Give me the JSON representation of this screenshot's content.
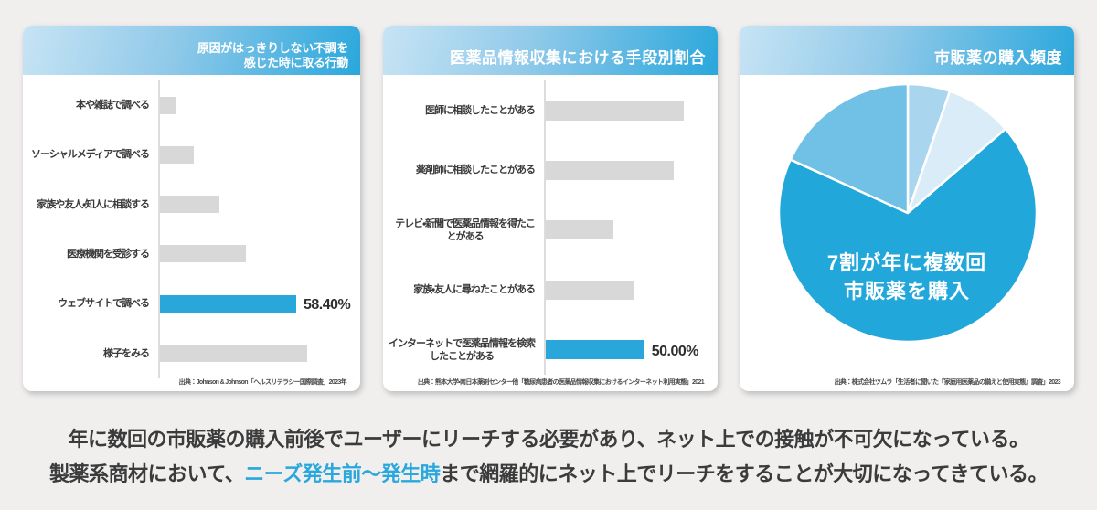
{
  "panels": [
    {
      "title": "原因がはっきりしない不調を\n感じた時に取る行動",
      "source": "出典：Johnson & Johnson「ヘルスリテラシー国際調査」2023年"
    },
    {
      "title": "医薬品情報収集における手段別割合",
      "source": "出典：熊本大学・南日本薬剤センター他「糖尿病患者の医薬品情報収集におけるインターネット利用実態」2021"
    },
    {
      "title": "市販薬の購入頻度",
      "source": "出典：株式会社ツムラ「生活者に聞いた『家庭用医薬品の備えと使用実態』調査」2023"
    }
  ],
  "chart_data": [
    {
      "type": "bar",
      "orientation": "horizontal",
      "title": "原因がはっきりしない不調を感じた時に取る行動",
      "categories": [
        "本や雑誌で調べる",
        "ソーシャルメディアで調べる",
        "家族や友人・知人に相談する",
        "医療機関を受診する",
        "ウェブサイトで調べる",
        "様子をみる"
      ],
      "values": [
        6.8,
        14.7,
        25.4,
        36.9,
        58.4,
        62.9
      ],
      "highlight_index": 4,
      "highlight_value_label": "58.40%",
      "bar_color": "#d8d8d8",
      "highlight_color": "#29a7db",
      "xlim": [
        0,
        70
      ],
      "grid": false,
      "legend": false
    },
    {
      "type": "bar",
      "orientation": "horizontal",
      "title": "医薬品情報収集における手段別割合",
      "categories": [
        "医師に相談したことがある",
        "薬剤師に相談したことがある",
        "テレビ・新聞で医薬品情報を得たこ\nとがある",
        "家族・友人に尋ねたことがある",
        "インターネットで医薬品情報を検索\nしたことがある"
      ],
      "values": [
        70.2,
        65.1,
        34.6,
        44.8,
        50.0
      ],
      "highlight_index": 4,
      "highlight_value_label": "50.00%",
      "bar_color": "#d8d8d8",
      "highlight_color": "#29a7db",
      "xlim": [
        0,
        80
      ],
      "grid": false,
      "legend": false
    },
    {
      "type": "pie",
      "title": "市販薬の購入頻度",
      "values": [
        5.3,
        8.4,
        68.1,
        18.2
      ],
      "colors": [
        "#a9d6ee",
        "#d9ecf7",
        "#22a7db",
        "#71c0e6"
      ],
      "start_angle_deg": 0,
      "direction": "clockwise",
      "divider_color": "#ffffff",
      "center_label": "7割が年に複数回\n市販薬を購入",
      "legend": false
    }
  ],
  "caption": {
    "line1": "年に数回の市販薬の購入前後でユーザーにリーチする必要があり、ネット上での接触が不可欠になっている。",
    "line2_prefix": "製薬系商材において、",
    "line2_highlight": "ニーズ発生前～発生時",
    "line2_suffix": "まで網羅的にネット上でリーチをすることが大切になってきている。",
    "highlight_color": "#2aa7dc"
  }
}
